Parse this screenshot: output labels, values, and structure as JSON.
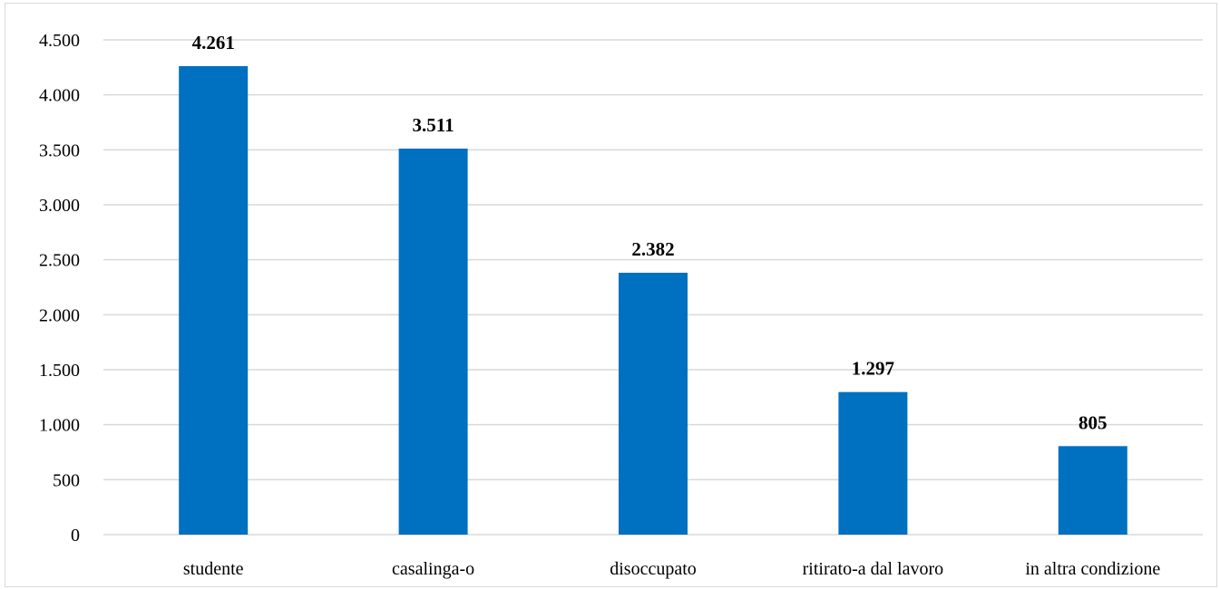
{
  "chart_data": {
    "type": "bar",
    "title": "",
    "xlabel": "",
    "ylabel": "",
    "categories": [
      "studente",
      "casalinga-o",
      "disoccupato",
      "ritirato-a dal lavoro",
      "in altra condizione"
    ],
    "values": [
      4261,
      3511,
      2382,
      1297,
      805
    ],
    "value_labels": [
      "4.261",
      "3.511",
      "2.382",
      "1.297",
      "805"
    ],
    "ylim": [
      0,
      4500
    ],
    "yticks": [
      0,
      500,
      1000,
      1500,
      2000,
      2500,
      3000,
      3500,
      4000,
      4500
    ],
    "ytick_labels": [
      "0",
      "500",
      "1.000",
      "1.500",
      "2.000",
      "2.500",
      "3.000",
      "3.500",
      "4.000",
      "4.500"
    ],
    "grid": true,
    "legend": "none",
    "bar_color": "#0070C0",
    "grid_color": "#d9d9d9"
  }
}
